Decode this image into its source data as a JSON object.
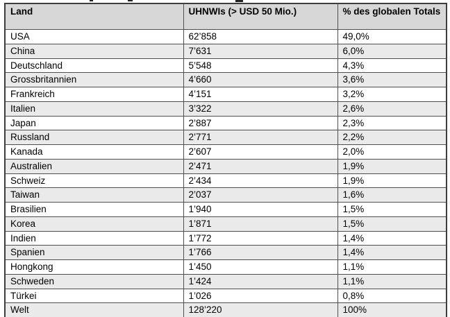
{
  "colors": {
    "header_bg": "#d7d7d7",
    "row_alt_bg": "#eaeaea",
    "row_bg": "#ffffff",
    "border": "#4f4f4f",
    "outer_border": "#3e3e3e",
    "text": "#000000"
  },
  "table": {
    "header": {
      "land": "Land",
      "uhnwis": "UHNWIs (> USD 50 Mio.)",
      "percent": "% des globalen Totals"
    },
    "rows": [
      {
        "land": "USA",
        "uhnwis": "62’858",
        "percent": "49,0%"
      },
      {
        "land": "China",
        "uhnwis": "7’631",
        "percent": "6,0%"
      },
      {
        "land": "Deutschland",
        "uhnwis": "5’548",
        "percent": "4,3%"
      },
      {
        "land": "Grossbritannien",
        "uhnwis": "4’660",
        "percent": "3,6%"
      },
      {
        "land": "Frankreich",
        "uhnwis": "4’151",
        "percent": "3,2%"
      },
      {
        "land": "Italien",
        "uhnwis": "3’322",
        "percent": "2,6%"
      },
      {
        "land": "Japan",
        "uhnwis": "2’887",
        "percent": "2,3%"
      },
      {
        "land": "Russland",
        "uhnwis": "2’771",
        "percent": "2,2%"
      },
      {
        "land": "Kanada",
        "uhnwis": "2’607",
        "percent": "2,0%"
      },
      {
        "land": "Australien",
        "uhnwis": "2’471",
        "percent": "1,9%"
      },
      {
        "land": "Schweiz",
        "uhnwis": "2’434",
        "percent": "1,9%"
      },
      {
        "land": "Taiwan",
        "uhnwis": "2’037",
        "percent": "1,6%"
      },
      {
        "land": "Brasilien",
        "uhnwis": "1’940",
        "percent": "1,5%"
      },
      {
        "land": "Korea",
        "uhnwis": "1’871",
        "percent": "1,5%"
      },
      {
        "land": "Indien",
        "uhnwis": "1’772",
        "percent": "1,4%"
      },
      {
        "land": "Spanien",
        "uhnwis": "1’766",
        "percent": "1,4%"
      },
      {
        "land": "Hongkong",
        "uhnwis": "1’450",
        "percent": "1,1%"
      },
      {
        "land": "Schweden",
        "uhnwis": "1’424",
        "percent": "1,1%"
      },
      {
        "land": "Türkei",
        "uhnwis": "1’026",
        "percent": "0,8%"
      },
      {
        "land": "Welt",
        "uhnwis": "128’220",
        "percent": "100%"
      }
    ]
  }
}
